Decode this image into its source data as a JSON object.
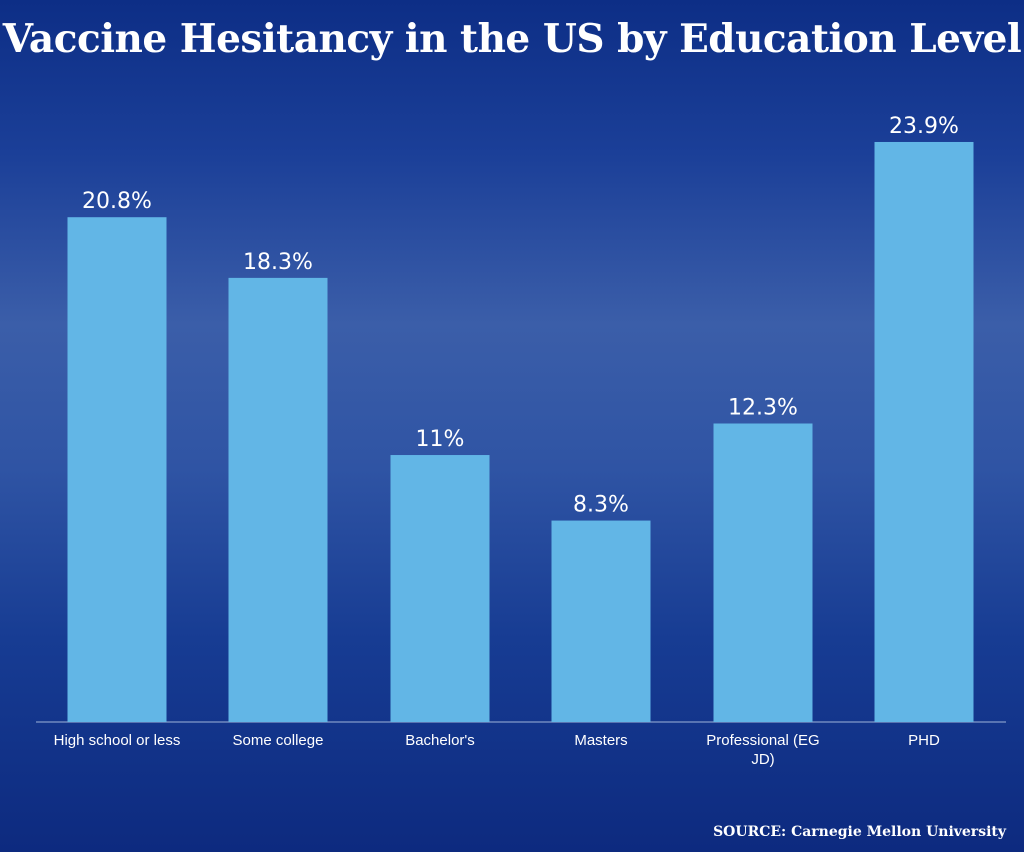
{
  "chart_data": {
    "type": "bar",
    "title": "Vaccine Hesitancy in the US by Education Level",
    "categories": [
      "High school or less",
      "Some college",
      "Bachelor's",
      "Masters",
      "Professional (EG JD)",
      "PHD"
    ],
    "category_lines": [
      [
        "High school or less"
      ],
      [
        "Some college"
      ],
      [
        "Bachelor's"
      ],
      [
        "Masters"
      ],
      [
        "Professional (EG",
        "JD)"
      ],
      [
        "PHD"
      ]
    ],
    "values": [
      20.8,
      18.3,
      11,
      8.3,
      12.3,
      23.9
    ],
    "data_labels": [
      "20.8%",
      "18.3%",
      "11%",
      "8.3%",
      "12.3%",
      "23.9%"
    ],
    "xlabel": "",
    "ylabel": "",
    "ylim": [
      0,
      25.3
    ],
    "grid": false,
    "legend": "none",
    "bar_color": "#62b6e6",
    "source": "SOURCE: Carnegie Mellon University"
  }
}
